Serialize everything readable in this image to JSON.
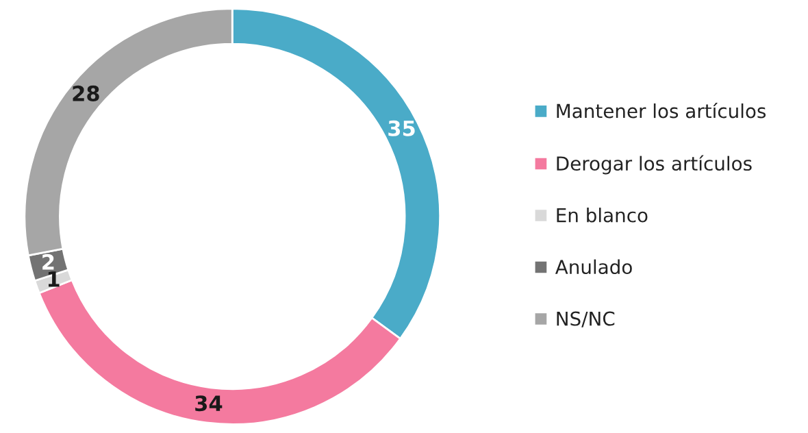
{
  "chart_data": {
    "type": "donut",
    "categories": [
      "Mantener los artículos",
      "Derogar los artículos",
      "En blanco",
      "Anulado",
      "NS/NC"
    ],
    "values": [
      35,
      34,
      1,
      2,
      28
    ],
    "colors": [
      "#4aabc8",
      "#f47a9f",
      "#d9d9d9",
      "#737373",
      "#a6a6a6"
    ],
    "data_labels": true,
    "legend": "right"
  }
}
